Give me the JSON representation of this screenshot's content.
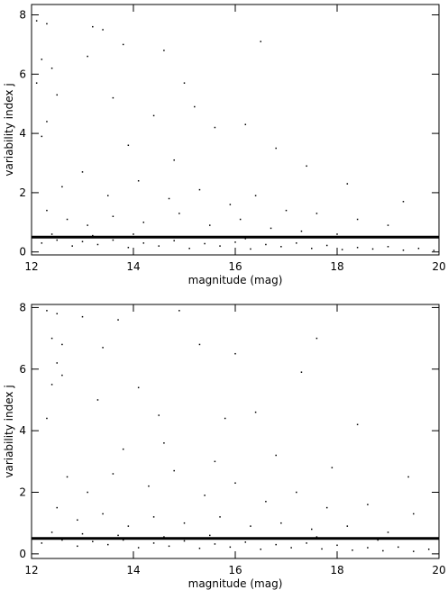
{
  "chart_data": [
    {
      "type": "scatter",
      "xlabel": "magnitude (mag)",
      "ylabel": "variability index j",
      "xlim": [
        12,
        20
      ],
      "ylim": [
        -0.1,
        8.35
      ],
      "xticks": [
        12,
        14,
        16,
        18,
        20
      ],
      "yticks": [
        0,
        2,
        4,
        6,
        8
      ],
      "color": "#000000",
      "reference_line": 0.5,
      "x": [
        12.1,
        12.3,
        12.2,
        12.4,
        12.1,
        12.5,
        12.3,
        12.2,
        13.2,
        13.4,
        13.1,
        13.8,
        14.6,
        15.0,
        16.5,
        13.6,
        14.4,
        15.2,
        15.6,
        16.2,
        13.9,
        14.8,
        16.8,
        17.4,
        18.2,
        19.3,
        12.6,
        13.0,
        13.5,
        14.1,
        14.7,
        15.3,
        15.9,
        16.4,
        17.0,
        17.6,
        18.4,
        19.0,
        12.3,
        12.7,
        13.1,
        13.6,
        14.2,
        14.9,
        15.5,
        16.1,
        16.7,
        17.3,
        18.0,
        19.6,
        12.2,
        12.5,
        12.8,
        13.0,
        13.3,
        13.6,
        13.9,
        14.2,
        14.5,
        14.8,
        15.1,
        15.4,
        15.7,
        16.0,
        16.3,
        16.6,
        16.9,
        17.2,
        17.5,
        17.8,
        18.1,
        18.4,
        18.7,
        19.0,
        19.3,
        19.6,
        19.9,
        12.4,
        13.2,
        14.0,
        15.0,
        16.2,
        17.0
      ],
      "values": [
        7.8,
        7.7,
        6.5,
        6.2,
        5.7,
        5.3,
        4.4,
        3.9,
        7.6,
        7.5,
        6.6,
        7.0,
        6.8,
        5.7,
        7.1,
        5.2,
        4.6,
        4.9,
        4.2,
        4.3,
        3.6,
        3.1,
        3.5,
        2.9,
        2.3,
        1.7,
        2.2,
        2.7,
        1.9,
        2.4,
        1.8,
        2.1,
        1.6,
        1.9,
        1.4,
        1.3,
        1.1,
        0.9,
        1.4,
        1.1,
        0.9,
        1.2,
        1.0,
        1.3,
        0.9,
        1.1,
        0.8,
        0.7,
        0.6,
        0.5,
        0.3,
        0.4,
        0.2,
        0.35,
        0.25,
        0.4,
        0.15,
        0.3,
        0.2,
        0.38,
        0.12,
        0.28,
        0.2,
        0.33,
        0.1,
        0.25,
        0.18,
        0.3,
        0.12,
        0.22,
        0.08,
        0.15,
        0.1,
        0.18,
        0.06,
        0.12,
        0.05,
        0.6,
        0.55,
        0.6,
        0.5,
        0.45,
        0.5
      ]
    },
    {
      "type": "scatter",
      "xlabel": "magnitude (mag)",
      "ylabel": "variability index j",
      "xlim": [
        12,
        20
      ],
      "ylim": [
        -0.15,
        8.1
      ],
      "xticks": [
        12,
        14,
        16,
        18,
        20
      ],
      "yticks": [
        0,
        2,
        4,
        6,
        8
      ],
      "color": "#000000",
      "reference_line": 0.5,
      "x": [
        12.3,
        12.5,
        12.4,
        12.6,
        12.5,
        12.6,
        12.4,
        12.3,
        13.0,
        13.7,
        14.9,
        13.4,
        15.3,
        16.0,
        17.6,
        17.3,
        13.3,
        14.1,
        14.5,
        15.8,
        16.4,
        18.4,
        13.8,
        14.6,
        15.6,
        16.8,
        17.9,
        19.4,
        12.7,
        13.1,
        13.6,
        14.3,
        14.8,
        15.4,
        16.0,
        16.6,
        17.2,
        17.8,
        18.6,
        19.5,
        12.5,
        12.9,
        13.4,
        13.9,
        14.4,
        15.0,
        15.7,
        16.3,
        16.9,
        17.5,
        18.2,
        19.0,
        12.2,
        12.6,
        12.9,
        13.2,
        13.5,
        13.8,
        14.1,
        14.4,
        14.7,
        15.0,
        15.3,
        15.6,
        15.9,
        16.2,
        16.5,
        16.8,
        17.1,
        17.4,
        17.7,
        18.0,
        18.3,
        18.6,
        18.9,
        19.2,
        19.5,
        19.8,
        12.4,
        13.0,
        13.7,
        14.6,
        15.5,
        16.6,
        17.6,
        18.8
      ],
      "values": [
        7.9,
        7.8,
        7.0,
        6.8,
        6.2,
        5.8,
        5.5,
        4.4,
        7.7,
        7.6,
        7.9,
        6.7,
        6.8,
        6.5,
        7.0,
        5.9,
        5.0,
        5.4,
        4.5,
        4.4,
        4.6,
        4.2,
        3.4,
        3.6,
        3.0,
        3.2,
        2.8,
        2.5,
        2.5,
        2.0,
        2.6,
        2.2,
        2.7,
        1.9,
        2.3,
        1.7,
        2.0,
        1.5,
        1.6,
        1.3,
        1.5,
        1.1,
        1.3,
        0.9,
        1.2,
        1.0,
        1.2,
        0.9,
        1.0,
        0.8,
        0.9,
        0.7,
        0.35,
        0.45,
        0.25,
        0.4,
        0.3,
        0.45,
        0.2,
        0.35,
        0.25,
        0.42,
        0.18,
        0.32,
        0.22,
        0.38,
        0.15,
        0.3,
        0.2,
        0.35,
        0.16,
        0.28,
        0.12,
        0.2,
        0.1,
        0.22,
        0.08,
        0.15,
        0.7,
        0.65,
        0.6,
        0.55,
        0.6,
        0.5,
        0.55,
        0.45
      ]
    }
  ]
}
